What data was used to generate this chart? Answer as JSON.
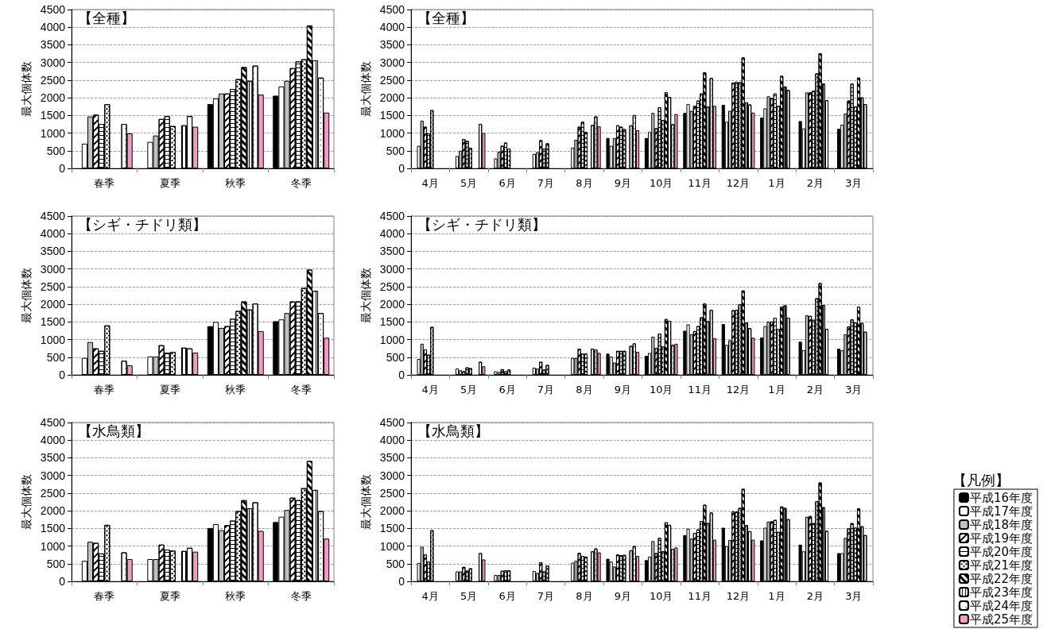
{
  "chart_data": [
    {
      "type": "bar",
      "title": "【全種】",
      "ylabel": "最大個体数",
      "categories": [
        "春季",
        "夏季",
        "秋季",
        "冬季"
      ],
      "ylim": [
        0,
        4500
      ],
      "yticks": [
        0,
        500,
        1000,
        1500,
        2000,
        2500,
        3000,
        3500,
        4000,
        4500
      ],
      "grid": "y",
      "series": [
        {
          "color": "#000000",
          "values": [
            null,
            null,
            1820,
            2060
          ]
        },
        {
          "color": "#ffffff",
          "values": [
            700,
            750,
            1980,
            2320
          ]
        },
        {
          "color": "#c0c0c0",
          "values": [
            1470,
            930,
            2120,
            2480
          ]
        },
        {
          "color": "#ffffff",
          "values": [
            1520,
            1400,
            2120,
            2840
          ]
        },
        {
          "color": "#ffffff",
          "values": [
            1260,
            1480,
            2250,
            3030
          ]
        },
        {
          "color": "#ffffff",
          "values": [
            1820,
            1200,
            2530,
            3090
          ]
        },
        {
          "color": "#ffffff",
          "values": [
            null,
            null,
            2870,
            4050
          ]
        },
        {
          "color": "#ffffff",
          "values": [
            null,
            1220,
            2480,
            3060
          ]
        },
        {
          "color": "#ffffff",
          "values": [
            1260,
            1480,
            2910,
            2570
          ]
        },
        {
          "color": "#f29cc4",
          "values": [
            990,
            1180,
            2090,
            1580
          ]
        }
      ]
    },
    {
      "type": "bar",
      "title": "【全種】",
      "ylabel": "最大個体数",
      "categories": [
        "4月",
        "5月",
        "6月",
        "7月",
        "8月",
        "9月",
        "10月",
        "11月",
        "12月",
        "1月",
        "2月",
        "3月"
      ],
      "ylim": [
        0,
        4500
      ],
      "yticks": [
        0,
        500,
        1000,
        1500,
        2000,
        2500,
        3000,
        3500,
        4000,
        4500
      ],
      "grid": "y",
      "series": [
        {
          "color": "#000000",
          "values": [
            null,
            null,
            null,
            null,
            null,
            860,
            860,
            1570,
            1800,
            1440,
            1340,
            1120
          ]
        },
        {
          "color": "#ffffff",
          "values": [
            640,
            350,
            280,
            410,
            590,
            640,
            1030,
            1820,
            1320,
            1700,
            1130,
            1240
          ]
        },
        {
          "color": "#c0c0c0",
          "values": [
            1350,
            500,
            470,
            460,
            810,
            860,
            1570,
            1630,
            1630,
            2040,
            2150,
            1550
          ]
        },
        {
          "color": "#ffffff",
          "values": [
            1180,
            830,
            640,
            800,
            1180,
            1220,
            1140,
            1770,
            2430,
            1990,
            2150,
            1920
          ]
        },
        {
          "color": "#ffffff",
          "values": [
            990,
            780,
            730,
            560,
            1320,
            1180,
            1730,
            1920,
            2450,
            2120,
            2200,
            2400
          ]
        },
        {
          "color": "#ffffff",
          "values": [
            1650,
            580,
            560,
            710,
            1030,
            1110,
            1370,
            2120,
            2440,
            1770,
            2690,
            1750
          ]
        },
        {
          "color": "#ffffff",
          "values": [
            null,
            null,
            null,
            null,
            null,
            null,
            2160,
            2720,
            3140,
            2620,
            3260,
            2570
          ]
        },
        {
          "color": "#ffffff",
          "values": [
            null,
            null,
            null,
            null,
            1230,
            1220,
            2020,
            1750,
            1870,
            2320,
            2400,
            2010
          ]
        },
        {
          "color": "#ffffff",
          "values": [
            null,
            1260,
            null,
            null,
            1470,
            1510,
            1250,
            2560,
            1810,
            2220,
            1930,
            1820
          ]
        },
        {
          "color": "#f29cc4",
          "values": [
            null,
            1000,
            null,
            null,
            1190,
            1080,
            1540,
            1770,
            1580,
            null,
            null,
            null
          ]
        }
      ]
    },
    {
      "type": "bar",
      "title": "【シギ・チドリ類】",
      "ylabel": "最大個体数",
      "categories": [
        "春季",
        "夏季",
        "秋季",
        "冬季"
      ],
      "ylim": [
        0,
        4500
      ],
      "yticks": [
        0,
        500,
        1000,
        1500,
        2000,
        2500,
        3000,
        3500,
        4000,
        4500
      ],
      "grid": "y",
      "series": [
        {
          "color": "#000000",
          "values": [
            null,
            null,
            1380,
            1520
          ]
        },
        {
          "color": "#ffffff",
          "values": [
            480,
            520,
            1500,
            1570
          ]
        },
        {
          "color": "#c0c0c0",
          "values": [
            930,
            520,
            1330,
            1750
          ]
        },
        {
          "color": "#ffffff",
          "values": [
            750,
            840,
            1380,
            2080
          ]
        },
        {
          "color": "#ffffff",
          "values": [
            680,
            630,
            1590,
            2080
          ]
        },
        {
          "color": "#ffffff",
          "values": [
            1400,
            650,
            1810,
            2460
          ]
        },
        {
          "color": "#ffffff",
          "values": [
            null,
            null,
            2080,
            2980
          ]
        },
        {
          "color": "#ffffff",
          "values": [
            null,
            770,
            1850,
            2380
          ]
        },
        {
          "color": "#ffffff",
          "values": [
            400,
            750,
            2020,
            1750
          ]
        },
        {
          "color": "#f29cc4",
          "values": [
            270,
            630,
            1240,
            1050
          ]
        }
      ]
    },
    {
      "type": "bar",
      "title": "【シギ・チドリ類】",
      "ylabel": "最大個体数",
      "categories": [
        "4月",
        "5月",
        "6月",
        "7月",
        "8月",
        "9月",
        "10月",
        "11月",
        "12月",
        "1月",
        "2月",
        "3月"
      ],
      "ylim": [
        0,
        4500
      ],
      "yticks": [
        0,
        500,
        1000,
        1500,
        2000,
        2500,
        3000,
        3500,
        4000,
        4500
      ],
      "grid": "y",
      "series": [
        {
          "color": "#000000",
          "values": [
            null,
            null,
            null,
            null,
            null,
            600,
            540,
            1250,
            1440,
            1060,
            940,
            740
          ]
        },
        {
          "color": "#ffffff",
          "values": [
            450,
            180,
            100,
            200,
            480,
            520,
            620,
            1430,
            850,
            1380,
            700,
            700
          ]
        },
        {
          "color": "#c0c0c0",
          "values": [
            880,
            130,
            80,
            180,
            480,
            350,
            1080,
            1150,
            980,
            1510,
            1690,
            1150
          ]
        },
        {
          "color": "#ffffff",
          "values": [
            720,
            100,
            160,
            370,
            740,
            680,
            760,
            1240,
            1830,
            1510,
            1670,
            1370
          ]
        },
        {
          "color": "#ffffff",
          "values": [
            570,
            210,
            100,
            150,
            600,
            680,
            1170,
            1380,
            1840,
            1620,
            1560,
            1570
          ]
        },
        {
          "color": "#ffffff",
          "values": [
            1360,
            190,
            150,
            280,
            600,
            680,
            800,
            1630,
            2000,
            1300,
            2170,
            1480
          ]
        },
        {
          "color": "#ffffff",
          "values": [
            null,
            null,
            null,
            null,
            null,
            null,
            1580,
            2020,
            2390,
            1930,
            2600,
            1930
          ]
        },
        {
          "color": "#ffffff",
          "values": [
            null,
            null,
            null,
            null,
            740,
            820,
            1530,
            1520,
            1480,
            1970,
            1980,
            1470
          ]
        },
        {
          "color": "#ffffff",
          "values": [
            null,
            370,
            null,
            null,
            720,
            890,
            850,
            1840,
            1320,
            1620,
            1300,
            1220
          ]
        },
        {
          "color": "#f29cc4",
          "values": [
            null,
            240,
            null,
            null,
            620,
            650,
            880,
            1040,
            1050,
            null,
            null,
            null
          ]
        }
      ]
    },
    {
      "type": "bar",
      "title": "【水鳥類】",
      "ylabel": "最大個体数",
      "categories": [
        "春季",
        "夏季",
        "秋季",
        "冬季"
      ],
      "ylim": [
        0,
        4500
      ],
      "yticks": [
        0,
        500,
        1000,
        1500,
        2000,
        2500,
        3000,
        3500,
        4000,
        4500
      ],
      "grid": "y",
      "series": [
        {
          "color": "#000000",
          "values": [
            null,
            null,
            1510,
            1680
          ]
        },
        {
          "color": "#ffffff",
          "values": [
            580,
            630,
            1620,
            1830
          ]
        },
        {
          "color": "#c0c0c0",
          "values": [
            1120,
            630,
            1450,
            2020
          ]
        },
        {
          "color": "#ffffff",
          "values": [
            1090,
            1040,
            1590,
            2370
          ]
        },
        {
          "color": "#ffffff",
          "values": [
            790,
            900,
            1720,
            2300
          ]
        },
        {
          "color": "#ffffff",
          "values": [
            1600,
            870,
            1990,
            2640
          ]
        },
        {
          "color": "#ffffff",
          "values": [
            null,
            null,
            2300,
            3410
          ]
        },
        {
          "color": "#ffffff",
          "values": [
            null,
            860,
            2070,
            2590
          ]
        },
        {
          "color": "#ffffff",
          "values": [
            820,
            950,
            2240,
            1990
          ]
        },
        {
          "color": "#f29cc4",
          "values": [
            630,
            840,
            1430,
            1210
          ]
        }
      ]
    },
    {
      "type": "bar",
      "title": "【水鳥類】",
      "ylabel": "最大個体数",
      "categories": [
        "4月",
        "5月",
        "6月",
        "7月",
        "8月",
        "9月",
        "10月",
        "11月",
        "12月",
        "1月",
        "2月",
        "3月"
      ],
      "ylim": [
        0,
        4500
      ],
      "yticks": [
        0,
        500,
        1000,
        1500,
        2000,
        2500,
        3000,
        3500,
        4000,
        4500
      ],
      "grid": "y",
      "legend": "bottom right",
      "legend_title": "【凡例】",
      "series": [
        {
          "name": "平成16年度",
          "color": "#000000",
          "values": [
            null,
            null,
            null,
            null,
            null,
            640,
            600,
            1310,
            1520,
            1160,
            1040,
            800
          ]
        },
        {
          "name": "平成17年度",
          "color": "#ffffff",
          "values": [
            520,
            280,
            180,
            290,
            530,
            560,
            700,
            1490,
            1000,
            1520,
            850,
            800
          ]
        },
        {
          "name": "平成18年度",
          "color": "#c0c0c0",
          "values": [
            980,
            280,
            180,
            240,
            580,
            420,
            1140,
            1210,
            1170,
            1690,
            1830,
            1230
          ]
        },
        {
          "name": "平成19年度",
          "color": "#ffffff",
          "values": [
            760,
            410,
            300,
            540,
            810,
            760,
            800,
            1370,
            1980,
            1700,
            1850,
            1500
          ]
        },
        {
          "name": "平成20年度",
          "color": "#ffffff",
          "values": [
            560,
            300,
            310,
            280,
            720,
            740,
            1230,
            1470,
            1970,
            1740,
            1650,
            1650
          ]
        },
        {
          "name": "平成21年度",
          "color": "#ffffff",
          "values": [
            1450,
            370,
            310,
            450,
            700,
            750,
            850,
            1710,
            2080,
            1400,
            2270,
            1520
          ]
        },
        {
          "name": "平成22年度",
          "color": "#ffffff",
          "values": [
            null,
            null,
            null,
            null,
            null,
            null,
            1670,
            2170,
            2620,
            2120,
            2800,
            2070
          ]
        },
        {
          "name": "平成23年度",
          "color": "#ffffff",
          "values": [
            null,
            null,
            null,
            null,
            850,
            880,
            1600,
            1650,
            1590,
            2080,
            2100,
            1560
          ]
        },
        {
          "name": "平成24年度",
          "color": "#ffffff",
          "values": [
            null,
            800,
            null,
            null,
            930,
            1000,
            920,
            1950,
            1420,
            1760,
            1430,
            1310
          ]
        },
        {
          "name": "平成25年度",
          "color": "#f29cc4",
          "values": [
            null,
            620,
            null,
            null,
            820,
            720,
            960,
            1180,
            1180,
            null,
            null,
            null
          ]
        }
      ]
    }
  ]
}
